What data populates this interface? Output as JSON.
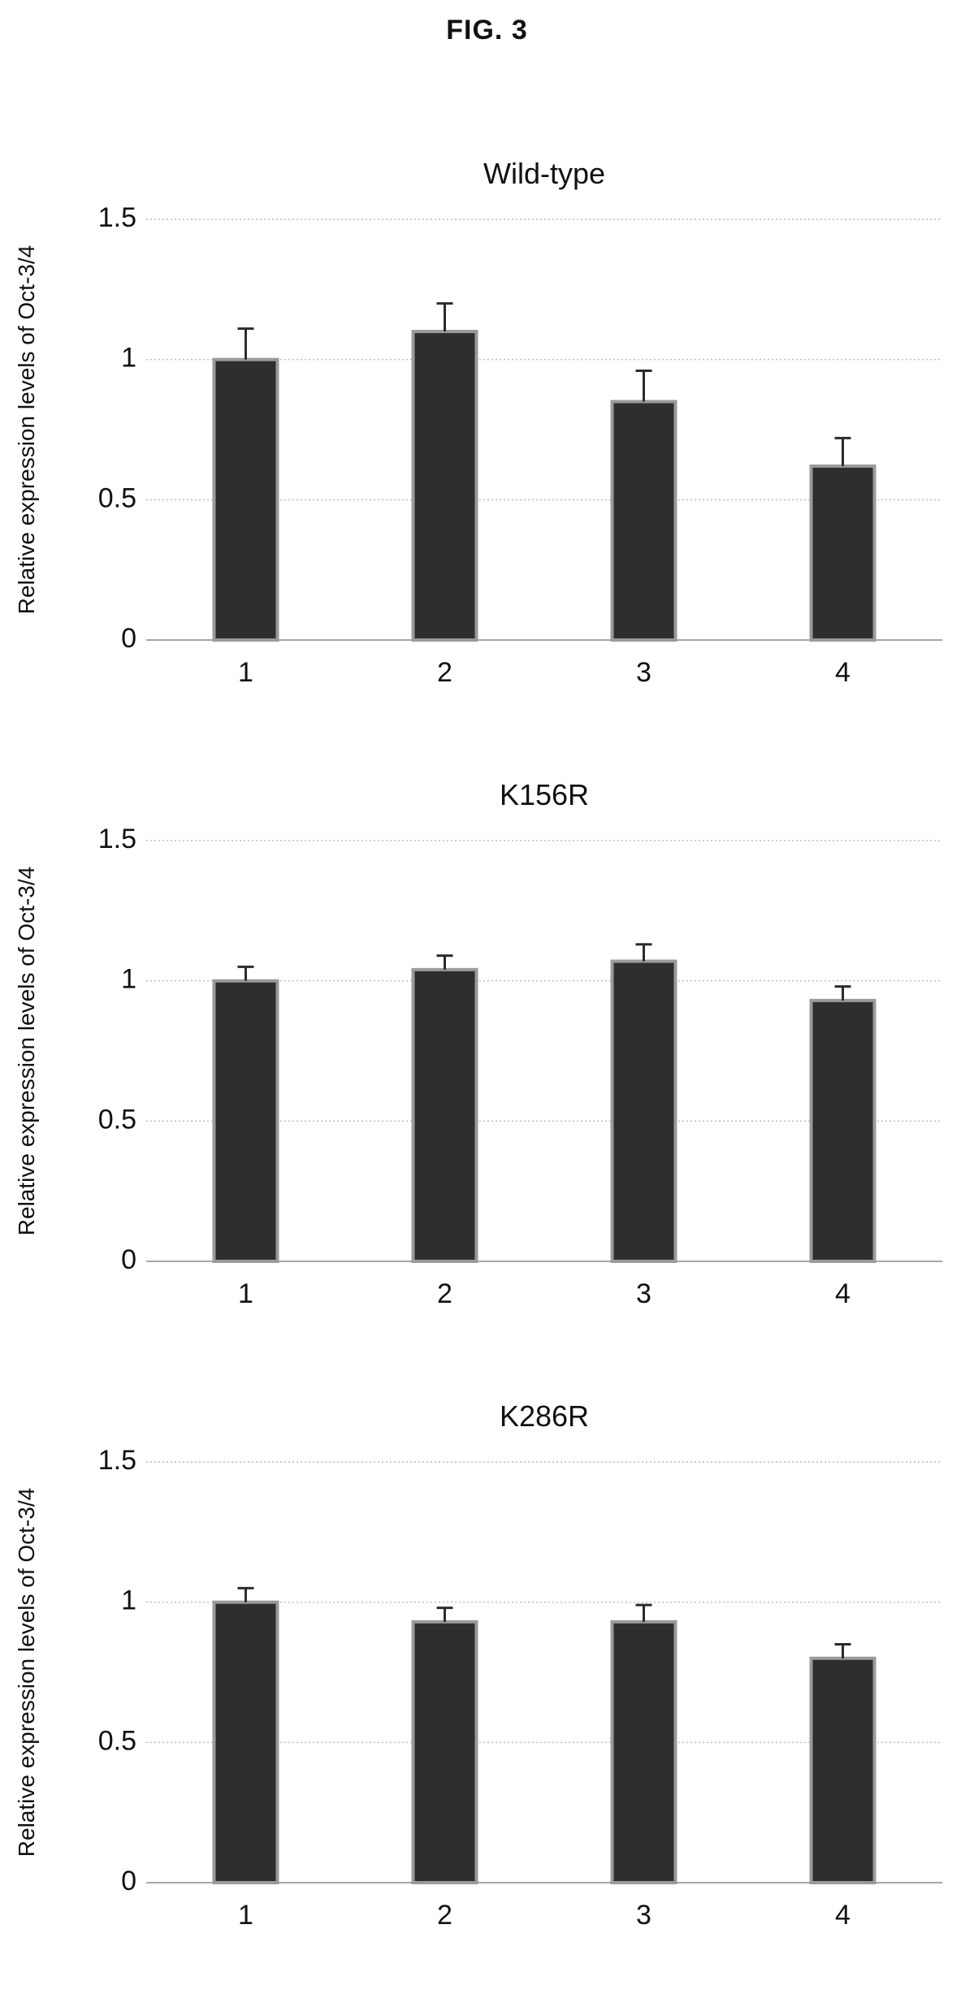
{
  "figure_title": "FIG. 3",
  "chart_data": [
    {
      "type": "bar",
      "title": "Wild-type",
      "ylabel": "Relative expression levels of Oct-3/4",
      "xlabel": "",
      "categories": [
        "1",
        "2",
        "3",
        "4"
      ],
      "values": [
        1.0,
        1.1,
        0.85,
        0.62
      ],
      "errors": [
        0.11,
        0.1,
        0.11,
        0.1
      ],
      "ylim": [
        0,
        1.5
      ],
      "yticks": [
        "0",
        "0.5",
        "1",
        "1.5"
      ],
      "grid": true
    },
    {
      "type": "bar",
      "title": "K156R",
      "ylabel": "Relative expression levels of Oct-3/4",
      "xlabel": "",
      "categories": [
        "1",
        "2",
        "3",
        "4"
      ],
      "values": [
        1.0,
        1.04,
        1.07,
        0.93
      ],
      "errors": [
        0.05,
        0.05,
        0.06,
        0.05
      ],
      "ylim": [
        0,
        1.5
      ],
      "yticks": [
        "0",
        "0.5",
        "1",
        "1.5"
      ],
      "grid": true
    },
    {
      "type": "bar",
      "title": "K286R",
      "ylabel": "Relative expression levels of Oct-3/4",
      "xlabel": "",
      "categories": [
        "1",
        "2",
        "3",
        "4"
      ],
      "values": [
        1.0,
        0.93,
        0.93,
        0.8
      ],
      "errors": [
        0.05,
        0.05,
        0.06,
        0.05
      ],
      "ylim": [
        0,
        1.5
      ],
      "yticks": [
        "0",
        "0.5",
        "1",
        "1.5"
      ],
      "grid": true
    }
  ]
}
